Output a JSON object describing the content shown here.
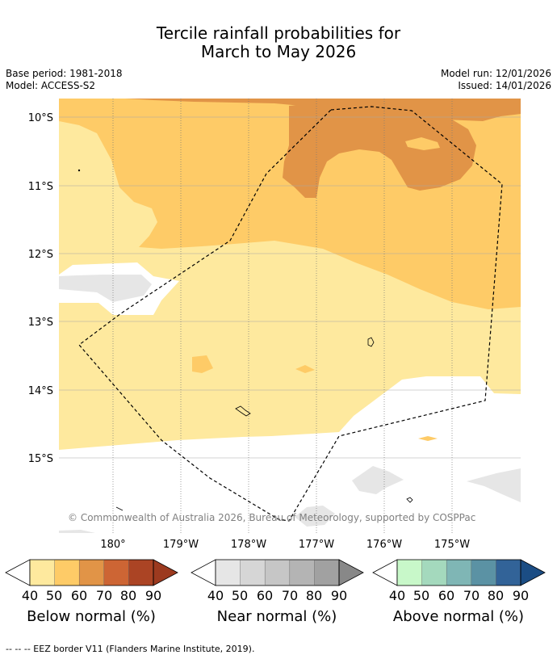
{
  "title_line1": "Tercile rainfall probabilities for",
  "title_line2": "March to May 2026",
  "base_period": "Base period: 1981-2018",
  "model": "Model: ACCESS-S2",
  "model_run": "Model run: 12/01/2026",
  "issued": "Issued: 14/01/2026",
  "copyright": "© Commonwealth of Australia 2026, Bureau of Meteorology, supported by COSPPac",
  "lat_labels": [
    "10°S",
    "11°S",
    "12°S",
    "13°S",
    "14°S",
    "15°S"
  ],
  "lon_labels": [
    "180°",
    "179°W",
    "178°W",
    "177°W",
    "176°W",
    "175°W"
  ],
  "legends": [
    {
      "title": "Below normal (%)",
      "ticks": [
        "40",
        "50",
        "60",
        "70",
        "80",
        "90"
      ],
      "colors": [
        "#fee99e",
        "#fecb67",
        "#e19447",
        "#cd6534",
        "#ab4424",
        "#9c3a1f"
      ]
    },
    {
      "title": "Near normal (%)",
      "ticks": [
        "40",
        "50",
        "60",
        "70",
        "80",
        "90"
      ],
      "colors": [
        "#e6e6e6",
        "#d6d6d6",
        "#c6c6c6",
        "#b4b4b4",
        "#a1a1a1",
        "#888888"
      ]
    },
    {
      "title": "Above normal (%)",
      "ticks": [
        "40",
        "50",
        "60",
        "70",
        "80",
        "90"
      ],
      "colors": [
        "#c8f8c9",
        "#a4d9bd",
        "#7fb6b5",
        "#5b92a4",
        "#326398",
        "#1b4d84"
      ]
    }
  ],
  "footnote": "--  --  -- EEZ border V11 (Flanders Marine Institute, 2019)."
}
